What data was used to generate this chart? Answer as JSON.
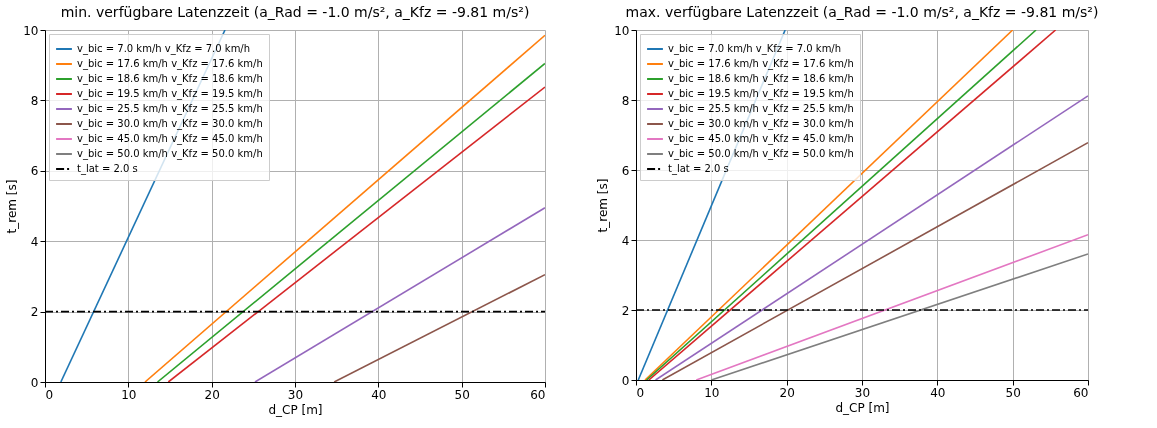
{
  "chart_data": [
    {
      "type": "line",
      "title": "min. verfügbare Latenzzeit (a_Rad = -1.0 m/s², a_Kfz = -9.81 m/s²)",
      "xlabel": "d_CP [m]",
      "ylabel": "t_rem [s]",
      "xlim": [
        0,
        60
      ],
      "ylim": [
        0,
        10
      ],
      "xticks": [
        0,
        10,
        20,
        30,
        40,
        50,
        60
      ],
      "yticks": [
        0,
        2,
        4,
        6,
        8,
        10
      ],
      "grid": true,
      "legend": "top left",
      "series": [
        {
          "name": "v_bic = 7.0 km/h v_Kfz = 7.0 km/h",
          "color": "#1f77b4",
          "x": [
            1.9,
            21.6
          ],
          "values": [
            0,
            10
          ]
        },
        {
          "name": "v_bic = 17.6 km/h v_Kfz = 17.6 km/h",
          "color": "#ff7f0e",
          "x": [
            12.0,
            60
          ],
          "values": [
            0,
            9.85
          ]
        },
        {
          "name": "v_bic = 18.6 km/h v_Kfz = 18.6 km/h",
          "color": "#2ca02c",
          "x": [
            13.5,
            60
          ],
          "values": [
            0,
            9.05
          ]
        },
        {
          "name": "v_bic = 19.5 km/h v_Kfz = 19.5 km/h",
          "color": "#d62728",
          "x": [
            14.8,
            60
          ],
          "values": [
            0,
            8.38
          ]
        },
        {
          "name": "v_bic = 25.5 km/h v_Kfz = 25.5 km/h",
          "color": "#9467bd",
          "x": [
            25.2,
            60
          ],
          "values": [
            0,
            4.95
          ]
        },
        {
          "name": "v_bic = 30.0 km/h v_Kfz = 30.0 km/h",
          "color": "#8c564b",
          "x": [
            34.7,
            60
          ],
          "values": [
            0,
            3.05
          ]
        },
        {
          "name": "v_bic = 45.0 km/h v_Kfz = 45.0 km/h",
          "color": "#e377c2"
        },
        {
          "name": "v_bic = 50.0 km/h v_Kfz = 50.0 km/h",
          "color": "#7f7f7f"
        }
      ],
      "ref_lines": [
        {
          "axis": "y",
          "value": 2,
          "label": "t_lat = 2.0 s",
          "color": "#000000",
          "line_style": "dashdot"
        }
      ]
    },
    {
      "type": "line",
      "title": "max. verfügbare Latenzzeit (a_Rad = -1.0 m/s², a_Kfz = -9.81 m/s²)",
      "xlabel": "d_CP [m]",
      "ylabel": "t_rem [s]",
      "xlim": [
        0,
        60
      ],
      "ylim": [
        0,
        10
      ],
      "xticks": [
        0,
        10,
        20,
        30,
        40,
        50,
        60
      ],
      "yticks": [
        0,
        2,
        4,
        6,
        8,
        10
      ],
      "grid": true,
      "legend": "top left",
      "series": [
        {
          "name": "v_bic = 7.0 km/h v_Kfz = 7.0 km/h",
          "color": "#1f77b4",
          "x": [
            0.3,
            19.8
          ],
          "values": [
            0,
            10
          ]
        },
        {
          "name": "v_bic = 17.6 km/h v_Kfz = 17.6 km/h",
          "color": "#ff7f0e",
          "x": [
            1.2,
            50.0
          ],
          "values": [
            0,
            10
          ]
        },
        {
          "name": "v_bic = 18.6 km/h v_Kfz = 18.6 km/h",
          "color": "#2ca02c",
          "x": [
            1.4,
            53.1
          ],
          "values": [
            0,
            10
          ]
        },
        {
          "name": "v_bic = 19.5 km/h v_Kfz = 19.5 km/h",
          "color": "#d62728",
          "x": [
            1.7,
            55.7
          ],
          "values": [
            0,
            10
          ]
        },
        {
          "name": "v_bic = 25.5 km/h v_Kfz = 25.5 km/h",
          "color": "#9467bd",
          "x": [
            2.6,
            60
          ],
          "values": [
            0,
            8.12
          ]
        },
        {
          "name": "v_bic = 30.0 km/h v_Kfz = 30.0 km/h",
          "color": "#8c564b",
          "x": [
            3.5,
            60
          ],
          "values": [
            0,
            6.78
          ]
        },
        {
          "name": "v_bic = 45.0 km/h v_Kfz = 45.0 km/h",
          "color": "#e377c2",
          "x": [
            8.0,
            60
          ],
          "values": [
            0,
            4.15
          ]
        },
        {
          "name": "v_bic = 50.0 km/h v_Kfz = 50.0 km/h",
          "color": "#7f7f7f",
          "x": [
            10.0,
            60
          ],
          "values": [
            0,
            3.6
          ]
        }
      ],
      "ref_lines": [
        {
          "axis": "y",
          "value": 2,
          "label": "t_lat = 2.0 s",
          "color": "#000000",
          "line_style": "dashdot"
        }
      ]
    }
  ]
}
